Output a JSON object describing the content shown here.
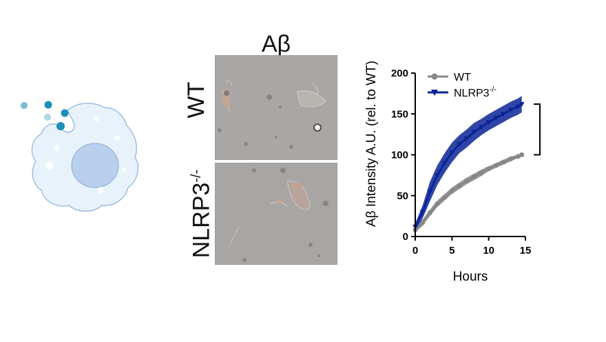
{
  "panel": {
    "title": "Aβ",
    "row_wt": "WT",
    "row_ko_main": "NLRP3",
    "row_ko_sup": "-/-"
  },
  "illustration": {
    "cell_fill": "#e8f2fb",
    "cell_stroke": "#9fbde0",
    "nucleus_fill": "#b9d0ec",
    "particle_color": "#1b8fb8"
  },
  "chart_data": {
    "type": "line",
    "xlabel": "Hours",
    "ylabel": "Aβ Intensity A.U. (rel. to WT)",
    "xlim": [
      0,
      15
    ],
    "ylim": [
      0,
      200
    ],
    "xticks": [
      "0",
      "5",
      "10",
      "15"
    ],
    "yticks": [
      "0",
      "50",
      "100",
      "150",
      "200"
    ],
    "legend_position": "top-left",
    "series": [
      {
        "name": "WT",
        "legend_main": "WT",
        "legend_sup": "",
        "color": "#878787",
        "marker": "circle",
        "x": [
          0,
          1,
          2,
          3,
          4,
          5,
          6,
          7,
          8,
          9,
          10,
          11,
          12,
          13,
          14,
          14.5
        ],
        "y": [
          8,
          17,
          29,
          40,
          48,
          56,
          62,
          68,
          73,
          78,
          83,
          87,
          91,
          95,
          98,
          100
        ],
        "band": [
          3,
          4,
          4,
          4,
          4,
          4,
          4,
          4,
          4,
          4,
          3,
          3,
          3,
          3,
          2,
          2
        ]
      },
      {
        "name": "NLRP3-/-",
        "legend_main": "NLRP3",
        "legend_sup": "-/-",
        "color": "#0a2496",
        "marker": "triangle-down",
        "x": [
          0,
          1,
          2,
          3,
          4,
          5,
          6,
          7,
          8,
          9,
          10,
          11,
          12,
          13,
          14,
          14.5
        ],
        "y": [
          12,
          30,
          55,
          75,
          90,
          103,
          113,
          120,
          128,
          134,
          140,
          145,
          150,
          155,
          159,
          162
        ],
        "band": [
          4,
          8,
          12,
          12,
          12,
          12,
          11,
          11,
          11,
          10,
          10,
          10,
          10,
          10,
          10,
          10
        ]
      }
    ],
    "significance": "****"
  }
}
